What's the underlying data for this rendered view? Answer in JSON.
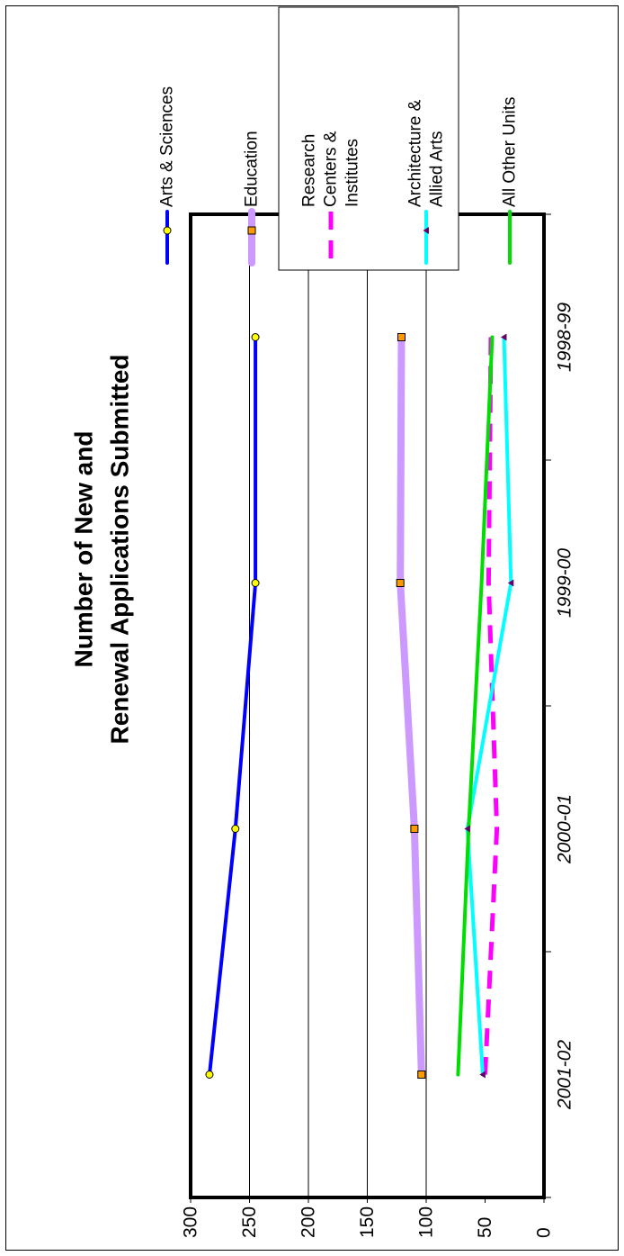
{
  "chart_data": {
    "type": "line",
    "title": [
      "Number of New and",
      "Renewal Applications Submitted"
    ],
    "categories": [
      "1998-99",
      "1999-00",
      "2000-01",
      "2001-02"
    ],
    "ylim": [
      0,
      300
    ],
    "yticks": [
      0,
      50,
      100,
      150,
      200,
      250,
      300
    ],
    "gridlines": [
      100,
      150,
      200,
      250
    ],
    "orientation": "rotated-90-ccw",
    "legend_position": "top-right",
    "series": [
      {
        "name": "Arts & Sciences",
        "legend_lines": [
          "Arts & Sciences"
        ],
        "values": [
          245,
          245,
          262,
          284
        ],
        "color": "#0000ff",
        "marker": "circle",
        "marker_fill": "#ffff00",
        "dash": "none",
        "width": 4
      },
      {
        "name": "Education",
        "legend_lines": [
          "Education"
        ],
        "values": [
          121,
          122,
          110,
          104
        ],
        "color": "#cc99ff",
        "marker": "square",
        "marker_fill": "#ff9900",
        "dash": "none",
        "width": 8
      },
      {
        "name": "Research Centers & Institutes",
        "legend_lines": [
          "Research",
          "Centers &",
          "Institutes"
        ],
        "values": [
          45,
          47,
          40,
          50
        ],
        "color": "#ff00ff",
        "marker": "none",
        "marker_fill": "",
        "dash": "20,12",
        "width": 5
      },
      {
        "name": "Architecture & Allied Arts",
        "legend_lines": [
          "Architecture &",
          "Allied Arts"
        ],
        "values": [
          34,
          28,
          65,
          52
        ],
        "color": "#00ffff",
        "marker": "triangle",
        "marker_fill": "#660066",
        "dash": "none",
        "width": 4
      },
      {
        "name": "All Other Units",
        "legend_lines": [
          "All Other Units"
        ],
        "values": [
          44,
          53,
          64,
          73
        ],
        "color": "#00dd00",
        "marker": "none",
        "marker_fill": "",
        "dash": "none",
        "width": 4
      }
    ]
  }
}
